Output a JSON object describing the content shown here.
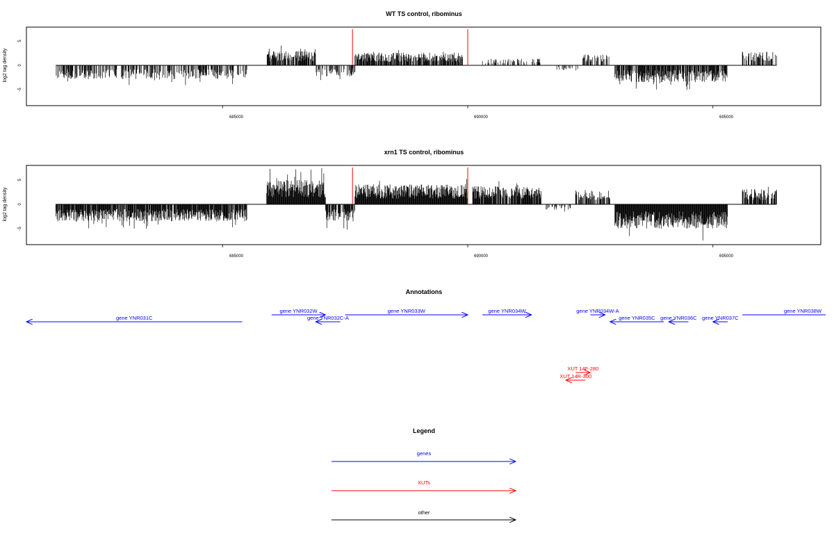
{
  "chart_data": [
    {
      "type": "bar",
      "title": "WT TS control, ribominus",
      "ylabel": "log2 tag density",
      "xlim": [
        681000,
        697200
      ],
      "ylim": [
        -8,
        8
      ],
      "x_ticks": [
        685000,
        690000,
        695000
      ],
      "x_tick_labels": [
        "685000",
        "690000",
        "695000"
      ],
      "y_ticks": [
        -5,
        0,
        5
      ],
      "y_tick_labels": [
        "-5",
        "0",
        "5"
      ],
      "markers": [
        {
          "x": 687650,
          "color": "#ff0000"
        },
        {
          "x": 690000,
          "color": "#ff0000"
        }
      ],
      "regions": [
        {
          "x0": 681600,
          "x1": 685500,
          "sign": -1,
          "amp": 2.3,
          "density": 0.55
        },
        {
          "x0": 685900,
          "x1": 686900,
          "sign": 1,
          "amp": 2.4,
          "density": 0.8
        },
        {
          "x0": 686900,
          "x1": 687700,
          "sign": -1,
          "amp": 1.8,
          "density": 0.45
        },
        {
          "x0": 687700,
          "x1": 689900,
          "sign": 1,
          "amp": 2.1,
          "density": 0.8
        },
        {
          "x0": 690300,
          "x1": 691500,
          "sign": 1,
          "amp": 1.1,
          "density": 0.35
        },
        {
          "x0": 691800,
          "x1": 692300,
          "sign": -1,
          "amp": 0.8,
          "density": 0.25
        },
        {
          "x0": 692300,
          "x1": 692900,
          "sign": 1,
          "amp": 1.8,
          "density": 0.5
        },
        {
          "x0": 693000,
          "x1": 695300,
          "sign": -1,
          "amp": 2.8,
          "density": 0.8
        },
        {
          "x0": 695600,
          "x1": 696300,
          "sign": 1,
          "amp": 2.2,
          "density": 0.6
        }
      ]
    },
    {
      "type": "bar",
      "title": "xrn1 TS control, ribominus",
      "ylabel": "log2 tag density",
      "xlim": [
        681000,
        697200
      ],
      "ylim": [
        -8,
        8
      ],
      "x_ticks": [
        685000,
        690000,
        695000
      ],
      "x_tick_labels": [
        "685000",
        "690000",
        "695000"
      ],
      "y_ticks": [
        -5,
        0,
        5
      ],
      "y_tick_labels": [
        "-5",
        "0",
        "5"
      ],
      "markers": [
        {
          "x": 687650,
          "color": "#ff0000"
        },
        {
          "x": 690000,
          "color": "#ff0000"
        }
      ],
      "regions": [
        {
          "x0": 681600,
          "x1": 685500,
          "sign": -1,
          "amp": 2.8,
          "density": 0.9
        },
        {
          "x0": 685900,
          "x1": 687100,
          "sign": 1,
          "amp": 4.0,
          "density": 1.0
        },
        {
          "x0": 687100,
          "x1": 687700,
          "sign": -1,
          "amp": 2.8,
          "density": 0.8
        },
        {
          "x0": 687700,
          "x1": 690000,
          "sign": 1,
          "amp": 3.3,
          "density": 1.0
        },
        {
          "x0": 690100,
          "x1": 691500,
          "sign": 1,
          "amp": 3.0,
          "density": 0.85
        },
        {
          "x0": 691600,
          "x1": 692100,
          "sign": -1,
          "amp": 0.9,
          "density": 0.3
        },
        {
          "x0": 692200,
          "x1": 692900,
          "sign": 1,
          "amp": 2.4,
          "density": 0.6
        },
        {
          "x0": 693000,
          "x1": 695300,
          "sign": -1,
          "amp": 4.0,
          "density": 1.0
        },
        {
          "x0": 695600,
          "x1": 696300,
          "sign": 1,
          "amp": 2.6,
          "density": 0.8
        }
      ]
    }
  ],
  "annotations": {
    "title": "Annotations",
    "features": [
      {
        "label": "gene YNR031C",
        "type": "gene",
        "start": 685400,
        "end": 681000,
        "row": 2
      },
      {
        "label": "gene YNR032W",
        "type": "gene",
        "start": 686000,
        "end": 687100,
        "row": 0
      },
      {
        "label": "gene YNR032C-A",
        "type": "gene",
        "start": 687400,
        "end": 686900,
        "row": 1
      },
      {
        "label": "gene YNR033W",
        "type": "gene",
        "start": 687500,
        "end": 690000,
        "row": 0
      },
      {
        "label": "gene YNR034W",
        "type": "gene",
        "start": 690300,
        "end": 691300,
        "row": 0
      },
      {
        "label": "gene YNR034W-A",
        "type": "gene",
        "start": 692500,
        "end": 692800,
        "row": 0
      },
      {
        "label": "gene YNR035C",
        "type": "gene",
        "start": 694000,
        "end": 692900,
        "row": 1
      },
      {
        "label": "gene YNR036C",
        "type": "gene",
        "start": 694500,
        "end": 694100,
        "row": 1
      },
      {
        "label": "gene YNR037C",
        "type": "gene",
        "start": 695300,
        "end": 695000,
        "row": 1
      },
      {
        "label": "gene YNR038W",
        "type": "gene",
        "start": 695600,
        "end": 697300,
        "row": 0
      },
      {
        "label": "XUT 14F-280",
        "type": "xut",
        "start": 692200,
        "end": 692500,
        "row": 3
      },
      {
        "label": "XUT 14R-300",
        "type": "xut",
        "start": 692400,
        "end": 692000,
        "row": 4
      }
    ]
  },
  "legend": {
    "title": "Legend",
    "items": [
      {
        "label": "genes",
        "color": "#0000ff"
      },
      {
        "label": "XUTs",
        "color": "#ff0000"
      },
      {
        "label": "other",
        "color": "#000000"
      }
    ]
  }
}
